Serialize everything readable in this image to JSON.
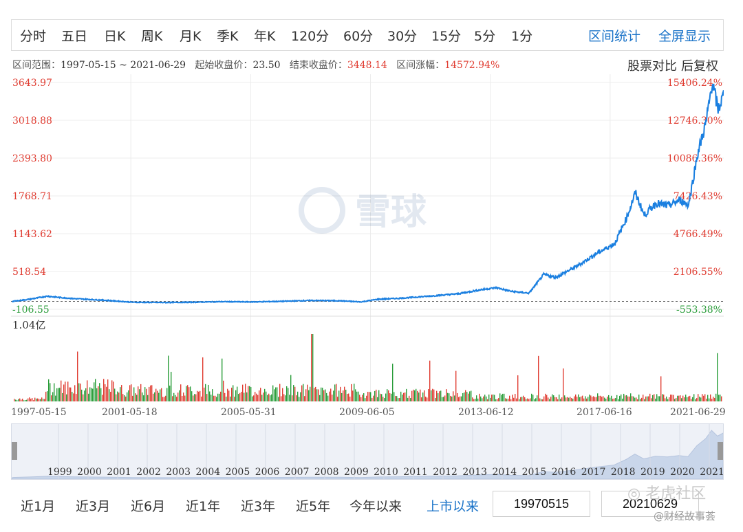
{
  "tabs": [
    "分时",
    "五日",
    "日K",
    "周K",
    "月K",
    "季K",
    "年K",
    "120分",
    "60分",
    "30分",
    "15分",
    "5分",
    "1分"
  ],
  "tab_links": [
    "区间统计",
    "全屏显示"
  ],
  "info": {
    "range_label": "区间范围：",
    "range_value": "1997-05-15 ~ 2021-06-29",
    "start_label": "起始收盘价：",
    "start_value": "23.50",
    "end_label": "结束收盘价：",
    "end_value": "3448.14",
    "change_label": "区间涨幅：",
    "change_value": "14572.94%",
    "compare": "股票对比",
    "adjust": "后复权"
  },
  "watermark": "雪球",
  "colors": {
    "line": "#1a7fe0",
    "up": "#e03c31",
    "down": "#2a9d3a",
    "link": "#1a73c8",
    "grid": "#ececec"
  },
  "chart_data": {
    "type": "line",
    "title": "",
    "y_left_ticks": [
      "3643.97",
      "3018.88",
      "2393.80",
      "1768.71",
      "1143.62",
      "518.54",
      "-106.55"
    ],
    "y_right_ticks": [
      "15406.24%",
      "12746.30%",
      "10086.36%",
      "7426.43%",
      "4766.49%",
      "2106.55%",
      "-553.38%"
    ],
    "ylim": [
      -106.55,
      3643.97
    ],
    "x_ticks": [
      "1997-05-15",
      "2001-05-18",
      "2005-05-31",
      "2009-06-05",
      "2013-06-12",
      "2017-06-16",
      "2021-06-29"
    ],
    "series": [
      {
        "values_by_year": [
          [
            1997.4,
            23.5
          ],
          [
            1998.0,
            60
          ],
          [
            1998.6,
            110
          ],
          [
            1999.0,
            90
          ],
          [
            1999.5,
            70
          ],
          [
            2000.5,
            45
          ],
          [
            2001.5,
            10
          ],
          [
            2002.5,
            5
          ],
          [
            2003.5,
            10
          ],
          [
            2004.5,
            20
          ],
          [
            2005.5,
            15
          ],
          [
            2006.5,
            25
          ],
          [
            2007.5,
            40
          ],
          [
            2008.5,
            35
          ],
          [
            2009.2,
            15
          ],
          [
            2009.8,
            60
          ],
          [
            2010.5,
            75
          ],
          [
            2011.5,
            110
          ],
          [
            2012.5,
            150
          ],
          [
            2013.3,
            220
          ],
          [
            2013.8,
            250
          ],
          [
            2014.3,
            190
          ],
          [
            2014.9,
            160
          ],
          [
            2015.4,
            470
          ],
          [
            2015.8,
            420
          ],
          [
            2016.5,
            600
          ],
          [
            2017.2,
            820
          ],
          [
            2017.8,
            980
          ],
          [
            2018.2,
            1400
          ],
          [
            2018.5,
            1820
          ],
          [
            2018.8,
            1450
          ],
          [
            2019.2,
            1650
          ],
          [
            2019.6,
            1600
          ],
          [
            2020.0,
            1700
          ],
          [
            2020.3,
            1620
          ],
          [
            2020.6,
            2450
          ],
          [
            2020.9,
            3000
          ],
          [
            2021.1,
            3643
          ],
          [
            2021.3,
            3200
          ],
          [
            2021.5,
            3448
          ]
        ]
      }
    ],
    "volume_label": "1.04亿",
    "volume_max": 104000000
  },
  "navigator_years": [
    "1999",
    "2000",
    "2001",
    "2002",
    "2003",
    "2004",
    "2005",
    "2006",
    "2007",
    "2008",
    "2009",
    "2010",
    "2011",
    "2012",
    "2013",
    "2014",
    "2015",
    "2016",
    "2017",
    "2018",
    "2019",
    "2020",
    "2021"
  ],
  "periods": [
    "近1月",
    "近3月",
    "近6月",
    "近1年",
    "近3年",
    "近5年",
    "今年以来",
    "上市以来"
  ],
  "active_period": "上市以来",
  "date_start": "19970515",
  "date_end": "20210629",
  "footer_watermark_1": "老虎社区",
  "footer_watermark_2": "@财经故事荟"
}
